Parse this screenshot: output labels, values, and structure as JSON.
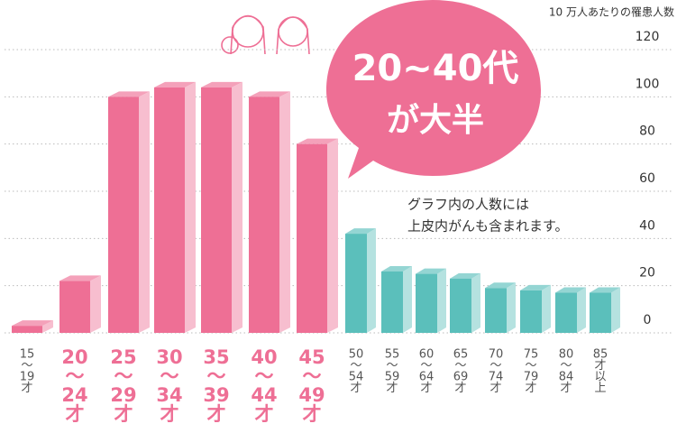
{
  "chart_data": {
    "type": "bar",
    "y_axis_label": "10 万人あたりの罹患人数",
    "callout": [
      "20~40代",
      "が大半"
    ],
    "note": [
      "グラフ内の人数には",
      "上皮内がんも含まれます。"
    ],
    "categories": [
      [
        "15",
        "～",
        "19",
        "才"
      ],
      [
        "20",
        "～",
        "24",
        "才"
      ],
      [
        "25",
        "～",
        "29",
        "才"
      ],
      [
        "30",
        "～",
        "34",
        "才"
      ],
      [
        "35",
        "～",
        "39",
        "才"
      ],
      [
        "40",
        "～",
        "44",
        "才"
      ],
      [
        "45",
        "～",
        "49",
        "才"
      ],
      [
        "50",
        "～",
        "54",
        "才"
      ],
      [
        "55",
        "～",
        "59",
        "才"
      ],
      [
        "60",
        "～",
        "64",
        "才"
      ],
      [
        "65",
        "～",
        "69",
        "才"
      ],
      [
        "70",
        "～",
        "74",
        "才"
      ],
      [
        "75",
        "～",
        "79",
        "才"
      ],
      [
        "80",
        "～",
        "84",
        "才"
      ],
      [
        "85",
        "才",
        "以",
        "上"
      ]
    ],
    "values": [
      3,
      22,
      100,
      104,
      104,
      100,
      80,
      42,
      26,
      25,
      23,
      19,
      18,
      17,
      17
    ],
    "colors": [
      "#ee6f95",
      "#ee6f95",
      "#ee6f95",
      "#ee6f95",
      "#ee6f95",
      "#ee6f95",
      "#ee6f95",
      "#5bbfbb",
      "#5bbfbb",
      "#5bbfbb",
      "#5bbfbb",
      "#5bbfbb",
      "#5bbfbb",
      "#5bbfbb",
      "#5bbfbb"
    ],
    "label_colors": [
      "#555555",
      "#ee6f95",
      "#ee6f95",
      "#ee6f95",
      "#ee6f95",
      "#ee6f95",
      "#ee6f95",
      "#555555",
      "#555555",
      "#555555",
      "#555555",
      "#555555",
      "#555555",
      "#555555",
      "#555555"
    ],
    "ylim": [
      0,
      120
    ],
    "yticks": [
      0,
      20,
      40,
      60,
      80,
      100,
      120
    ],
    "grid": true
  }
}
